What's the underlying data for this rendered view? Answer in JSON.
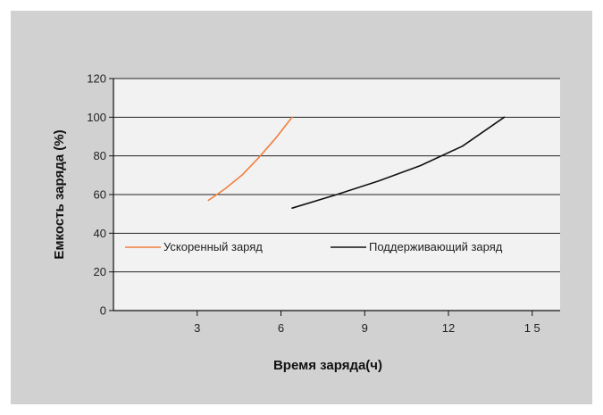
{
  "chart_data": {
    "type": "line",
    "xlabel": "Время заряда(ч)",
    "ylabel": "Емкость заряда (%)",
    "xlim": [
      0,
      16
    ],
    "ylim": [
      0,
      120
    ],
    "x_ticks": [
      3,
      6,
      9,
      12,
      15
    ],
    "x_tick_labels": [
      "3",
      "6",
      "9",
      "12",
      "1 5"
    ],
    "y_ticks": [
      0,
      20,
      40,
      60,
      80,
      100,
      120
    ],
    "y_tick_labels": [
      "0",
      "20",
      "40",
      "60",
      "80",
      "100",
      "120"
    ],
    "grid": "horizontal",
    "legend_position": "middle",
    "series": [
      {
        "name": "Ускоренный заряд",
        "color": "#f07f3c",
        "x": [
          3.4,
          4.0,
          4.6,
          5.2,
          5.8,
          6.4
        ],
        "y": [
          57,
          63,
          70,
          79,
          89,
          100
        ]
      },
      {
        "name": "Поддерживающий заряд",
        "color": "#111111",
        "x": [
          6.4,
          8.0,
          9.5,
          11.0,
          12.5,
          14.0
        ],
        "y": [
          53,
          60,
          67,
          75,
          85,
          100
        ]
      }
    ]
  }
}
